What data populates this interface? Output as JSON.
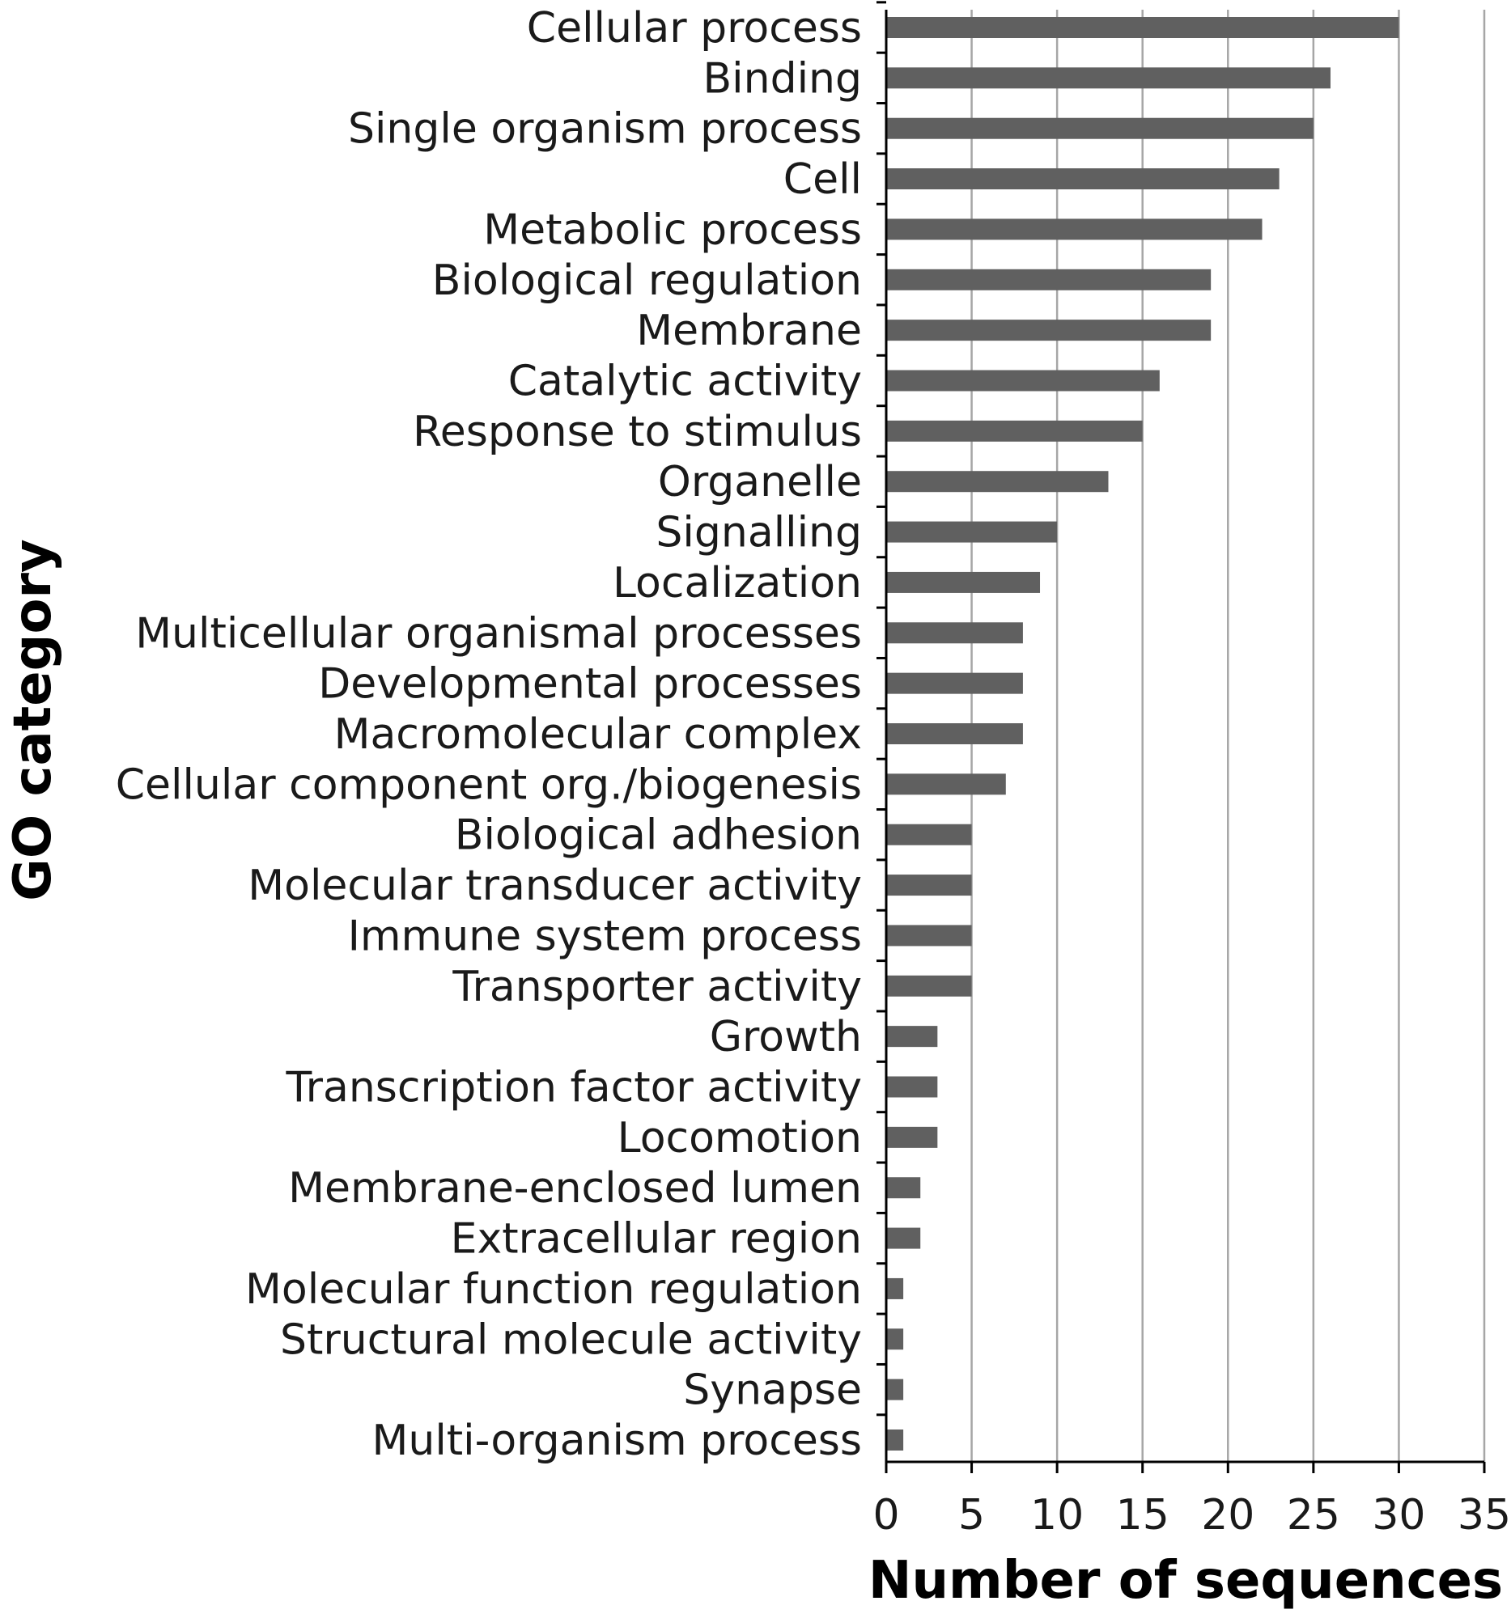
{
  "chart_data": {
    "type": "bar",
    "orientation": "horizontal",
    "title": "",
    "xlabel": "Number of sequences",
    "ylabel": "GO category",
    "xlim": [
      0,
      35
    ],
    "x_ticks": [
      "0",
      "5",
      "10",
      "15",
      "20",
      "25",
      "30",
      "35"
    ],
    "grid": "vertical",
    "bar_color": "#606060",
    "categories": [
      "Cellular process",
      "Binding",
      "Single organism process",
      "Cell",
      "Metabolic process",
      "Biological regulation",
      "Membrane",
      "Catalytic activity",
      "Response to stimulus",
      "Organelle",
      "Signalling",
      "Localization",
      "Multicellular organismal processes",
      "Developmental processes",
      "Macromolecular complex",
      "Cellular component org./biogenesis",
      "Biological adhesion",
      "Molecular transducer activity",
      "Immune system process",
      "Transporter activity",
      "Growth",
      "Transcription factor activity",
      "Locomotion",
      "Membrane-enclosed lumen",
      "Extracellular region",
      "Molecular function regulation",
      "Structural molecule activity",
      "Synapse",
      "Multi-organism process"
    ],
    "values": [
      30,
      26,
      25,
      23,
      22,
      19,
      19,
      16,
      15,
      13,
      10,
      9,
      8,
      8,
      8,
      7,
      5,
      5,
      5,
      5,
      3,
      3,
      3,
      2,
      2,
      1,
      1,
      1,
      1
    ]
  }
}
